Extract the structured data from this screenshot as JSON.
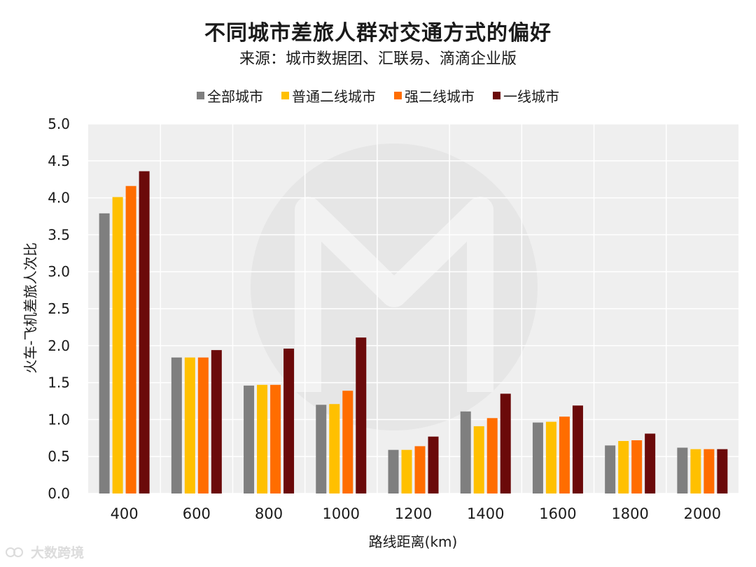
{
  "title": "不同城市差旅人群对交通方式的偏好",
  "subtitle": "来源：城市数据团、汇联易、滴滴企业版",
  "watermark": "大数跨境",
  "colors": {
    "plot_bg": "#efefef",
    "grid": "#ffffff",
    "text": "#1a1a1a"
  },
  "chart_data": {
    "type": "bar",
    "xlabel": "路线距离(km)",
    "ylabel": "火车-飞机差旅人次比",
    "categories": [
      "400",
      "600",
      "800",
      "1000",
      "1200",
      "1400",
      "1600",
      "1800",
      "2000"
    ],
    "ylim": [
      0,
      5.0
    ],
    "yticks": [
      "0.0",
      "0.5",
      "1.0",
      "1.5",
      "2.0",
      "2.5",
      "3.0",
      "3.5",
      "4.0",
      "4.5",
      "5.0"
    ],
    "grid": true,
    "legend_position": "top",
    "series": [
      {
        "name": "全部城市",
        "color": "#7f7f7f",
        "values": [
          3.79,
          1.84,
          1.46,
          1.2,
          0.59,
          1.11,
          0.96,
          0.65,
          0.62
        ]
      },
      {
        "name": "普通二线城市",
        "color": "#ffc000",
        "values": [
          4.01,
          1.84,
          1.47,
          1.21,
          0.59,
          0.91,
          0.97,
          0.71,
          0.6
        ]
      },
      {
        "name": "强二线城市",
        "color": "#ff6d00",
        "values": [
          4.16,
          1.84,
          1.47,
          1.39,
          0.64,
          1.02,
          1.04,
          0.72,
          0.6
        ]
      },
      {
        "name": "一线城市",
        "color": "#6b0a0a",
        "values": [
          4.36,
          1.94,
          1.96,
          2.11,
          0.77,
          1.35,
          1.19,
          0.81,
          0.6
        ]
      }
    ]
  }
}
